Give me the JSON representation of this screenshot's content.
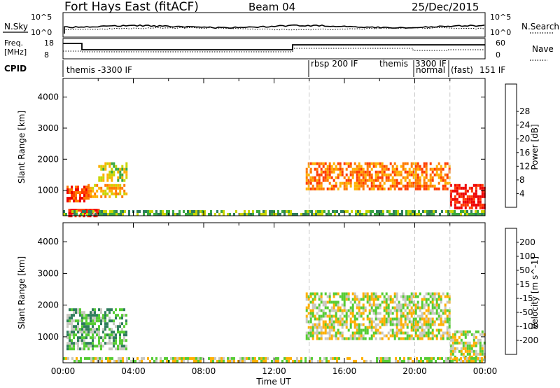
{
  "header": {
    "title": "Fort Hays East (fitACF)",
    "beam": "Beam 04",
    "date": "25/Dec/2015"
  },
  "top_panels": {
    "nsky": {
      "label": "N.Sky",
      "ticks": [
        "10^5",
        "10^0"
      ],
      "right_ticks": [
        "10^5",
        "10^0"
      ],
      "right_label": "N.Search"
    },
    "freq": {
      "label_line1": "Freq.",
      "label_line2": "[MHz]",
      "ticks": [
        "18",
        "8"
      ],
      "right_ticks": [
        "60",
        "0"
      ],
      "right_label": "Nave"
    },
    "cpid": {
      "label": "CPID",
      "segments": [
        {
          "text": "themis -3300 IF",
          "start_hour": 0.0
        },
        {
          "text": "rbsp 200 IF",
          "start_hour": 14.0
        },
        {
          "text": "themis",
          "start_hour": 18.0
        },
        {
          "text": "3300 IF",
          "start_hour": 20.0
        },
        {
          "text": "normal",
          "start_hour": 20.0
        },
        {
          "text": "(fast)",
          "start_hour": 21.75
        },
        {
          "text": "151 IF",
          "start_hour": 21.75
        }
      ]
    }
  },
  "chart_data": [
    {
      "type": "heatmap",
      "name": "power",
      "ylabel": "Slant Range [km]",
      "xlabel": "",
      "xlim": [
        0,
        24
      ],
      "ylim": [
        180,
        4600
      ],
      "y_ticks": [
        "1000",
        "2000",
        "3000",
        "4000"
      ],
      "grid": false,
      "colorbar": {
        "label": "Power [dB]",
        "ticks": [
          "4",
          "8",
          "12",
          "16",
          "20",
          "24",
          "28"
        ],
        "colors": [
          "#0000ff",
          "#1f3fbf",
          "#2e7d5b",
          "#3aa840",
          "#c8d400",
          "#ffb000",
          "#ff7a00",
          "#ff3b00",
          "#ee0000"
        ]
      },
      "regions": [
        {
          "x": [
            0.2,
            1.5
          ],
          "y": [
            650,
            1150
          ],
          "level": 7
        },
        {
          "x": [
            1.4,
            3.6
          ],
          "y": [
            750,
            1200
          ],
          "level": 5
        },
        {
          "x": [
            2.0,
            3.6
          ],
          "y": [
            1300,
            1900
          ],
          "level": 4
        },
        {
          "x": [
            0.3,
            2.0
          ],
          "y": [
            200,
            400
          ],
          "level": 8
        },
        {
          "x": [
            13.8,
            22.0
          ],
          "y": [
            1050,
            1900
          ],
          "level": 6
        },
        {
          "x": [
            22.0,
            24.0
          ],
          "y": [
            450,
            1200
          ],
          "level": 8
        },
        {
          "x": [
            0.0,
            24.0
          ],
          "y": [
            200,
            360
          ],
          "level": 3
        }
      ]
    },
    {
      "type": "heatmap",
      "name": "velocity",
      "ylabel": "Slant Range [km]",
      "xlabel": "Time UT",
      "xlim": [
        0,
        24
      ],
      "ylim": [
        180,
        4600
      ],
      "x_ticks": [
        "00:00",
        "04:00",
        "08:00",
        "12:00",
        "16:00",
        "20:00",
        "00:00"
      ],
      "y_ticks": [
        "1000",
        "2000",
        "3000",
        "4000"
      ],
      "grid": false,
      "colorbar": {
        "label": "Velocity [m s^-1]",
        "ticks": [
          "200",
          "100",
          "50",
          "15",
          "-15",
          "-50",
          "-100",
          "-200"
        ],
        "colors": [
          "#0000ff",
          "#1f3fbf",
          "#2e7d5b",
          "#55cc33",
          "#c8c8c0",
          "#ffb000",
          "#ff7a00",
          "#ff3b00",
          "#ee0000"
        ]
      },
      "regions": [
        {
          "x": [
            0.2,
            3.6
          ],
          "y": [
            650,
            1900
          ],
          "level": 3
        },
        {
          "x": [
            13.8,
            22.0
          ],
          "y": [
            900,
            2400
          ],
          "level": 4
        },
        {
          "x": [
            22.0,
            24.0
          ],
          "y": [
            250,
            1200
          ],
          "level": 4
        },
        {
          "x": [
            0.0,
            24.0
          ],
          "y": [
            200,
            360
          ],
          "level": 4
        }
      ]
    }
  ]
}
